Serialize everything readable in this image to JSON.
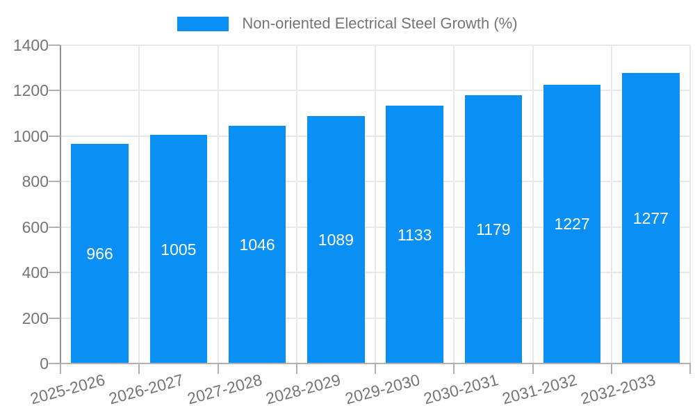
{
  "chart_data": {
    "type": "bar",
    "title": "Non-oriented Electrical Steel Growth (%)",
    "categories": [
      "2025-2026",
      "2026-2027",
      "2027-2028",
      "2028-2029",
      "2029-2030",
      "2030-2031",
      "2031-2032",
      "2032-2033"
    ],
    "values": [
      966,
      1005,
      1046,
      1089,
      1133,
      1179,
      1227,
      1277
    ],
    "xlabel": "",
    "ylabel": "",
    "ylim": [
      0,
      1400
    ],
    "yticks": [
      0,
      200,
      400,
      600,
      800,
      1000,
      1200,
      1400
    ],
    "grid": true,
    "legend_position": "top",
    "bar_value_labels": "inside-center"
  },
  "colors": {
    "bar": "#0a90f5",
    "bar_label": "#ffffff",
    "grid": "#e8e8e8",
    "axis_line": "#909090",
    "baseline": "#b0b0b0",
    "tick_mark": "#b0b0b0",
    "tick_text": "#757575",
    "legend_text": "#757575",
    "background": "#ffffff"
  }
}
